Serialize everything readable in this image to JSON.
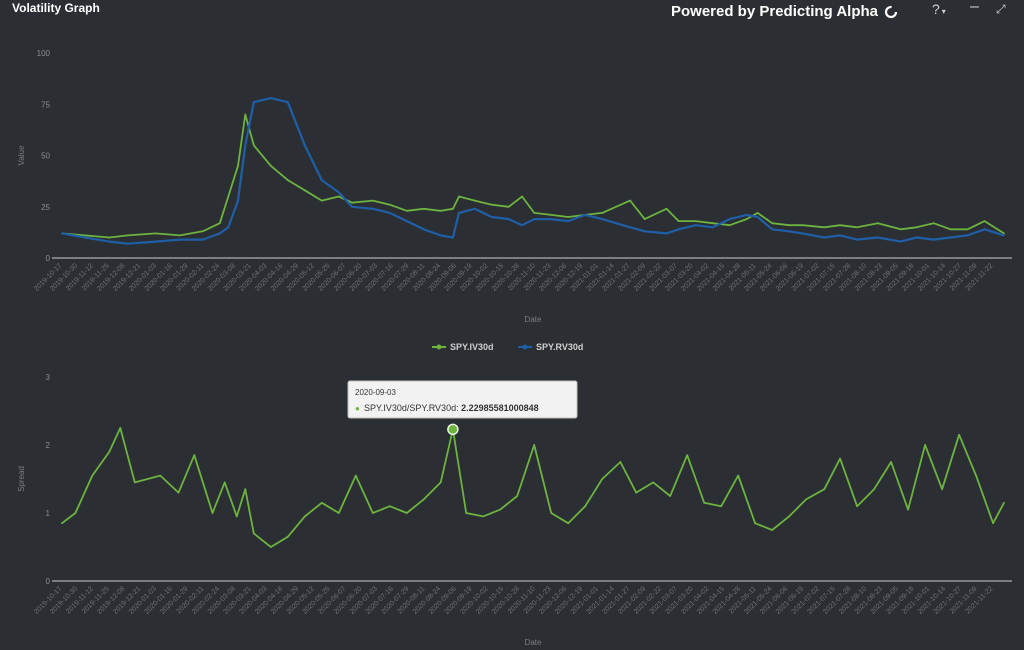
{
  "window": {
    "title": "Volatility Graph",
    "brand": "Powered by Predicting Alpha",
    "controls": {
      "help": "?",
      "minimize": "–",
      "expand": "⤢"
    },
    "icons": [
      "help-icon",
      "minimize-icon",
      "expand-icon",
      "predicting-alpha-logo-icon"
    ]
  },
  "colors": {
    "background": "#2b2e33",
    "iv_series": "#6db33f",
    "rv_series": "#1f5fa8",
    "ratio_series": "#6db33f",
    "axis_line": "#cfcfcf",
    "tooltip_bg": "#f2f2f2"
  },
  "chart_data": [
    {
      "type": "line",
      "xlabel": "Date",
      "ylabel": "Value",
      "ylim": [
        0,
        100
      ],
      "yticks": [
        0,
        25,
        50,
        75,
        100
      ],
      "x_range": [
        "2019-10-17",
        "2021-12-01"
      ],
      "grid": false,
      "legend_position": "bottom-center",
      "series": [
        {
          "name": "SPY.IV30d",
          "color": "#6db33f",
          "dates": [
            "2019-10-17",
            "2019-11-05",
            "2019-11-25",
            "2019-12-10",
            "2020-01-02",
            "2020-01-22",
            "2020-02-10",
            "2020-02-24",
            "2020-03-02",
            "2020-03-10",
            "2020-03-16",
            "2020-03-23",
            "2020-04-06",
            "2020-04-20",
            "2020-05-04",
            "2020-05-18",
            "2020-06-01",
            "2020-06-12",
            "2020-06-29",
            "2020-07-13",
            "2020-07-27",
            "2020-08-10",
            "2020-08-24",
            "2020-09-03",
            "2020-09-08",
            "2020-09-21",
            "2020-10-05",
            "2020-10-19",
            "2020-10-30",
            "2020-11-09",
            "2020-11-23",
            "2020-12-07",
            "2020-12-21",
            "2021-01-04",
            "2021-01-27",
            "2021-02-08",
            "2021-02-26",
            "2021-03-08",
            "2021-03-22",
            "2021-04-05",
            "2021-04-19",
            "2021-05-03",
            "2021-05-12",
            "2021-05-24",
            "2021-06-07",
            "2021-06-18",
            "2021-07-06",
            "2021-07-19",
            "2021-08-02",
            "2021-08-19",
            "2021-09-07",
            "2021-09-20",
            "2021-10-04",
            "2021-10-18",
            "2021-11-01",
            "2021-11-15",
            "2021-12-01"
          ],
          "values": [
            12,
            11,
            10,
            11,
            12,
            11,
            13,
            17,
            30,
            45,
            70,
            55,
            45,
            38,
            33,
            28,
            30,
            27,
            28,
            26,
            23,
            24,
            23,
            24,
            30,
            28,
            26,
            25,
            30,
            22,
            21,
            20,
            21,
            22,
            28,
            19,
            24,
            18,
            18,
            17,
            16,
            19,
            22,
            17,
            16,
            16,
            15,
            16,
            15,
            17,
            14,
            15,
            17,
            14,
            14,
            18,
            12
          ]
        },
        {
          "name": "SPY.RV30d",
          "color": "#1f5fa8",
          "dates": [
            "2019-10-17",
            "2019-11-05",
            "2019-11-25",
            "2019-12-10",
            "2020-01-02",
            "2020-01-22",
            "2020-02-10",
            "2020-02-24",
            "2020-03-02",
            "2020-03-10",
            "2020-03-16",
            "2020-03-23",
            "2020-04-06",
            "2020-04-20",
            "2020-05-04",
            "2020-05-18",
            "2020-06-01",
            "2020-06-12",
            "2020-06-29",
            "2020-07-13",
            "2020-07-27",
            "2020-08-10",
            "2020-08-24",
            "2020-09-03",
            "2020-09-08",
            "2020-09-21",
            "2020-10-05",
            "2020-10-19",
            "2020-10-30",
            "2020-11-09",
            "2020-11-23",
            "2020-12-07",
            "2020-12-21",
            "2021-01-04",
            "2021-01-27",
            "2021-02-08",
            "2021-02-26",
            "2021-03-08",
            "2021-03-22",
            "2021-04-05",
            "2021-04-19",
            "2021-05-03",
            "2021-05-12",
            "2021-05-24",
            "2021-06-07",
            "2021-06-18",
            "2021-07-06",
            "2021-07-19",
            "2021-08-02",
            "2021-08-19",
            "2021-09-07",
            "2021-09-20",
            "2021-10-04",
            "2021-10-18",
            "2021-11-01",
            "2021-11-15",
            "2021-12-01"
          ],
          "values": [
            12,
            10,
            8,
            7,
            8,
            9,
            9,
            12,
            15,
            28,
            55,
            76,
            78,
            76,
            55,
            38,
            32,
            25,
            24,
            22,
            18,
            14,
            11,
            10,
            22,
            24,
            20,
            19,
            16,
            19,
            19,
            18,
            21,
            19,
            15,
            13,
            12,
            14,
            16,
            15,
            19,
            21,
            20,
            14,
            13,
            12,
            10,
            11,
            9,
            10,
            8,
            10,
            9,
            10,
            11,
            14,
            11
          ]
        }
      ]
    },
    {
      "type": "line",
      "xlabel": "Date",
      "ylabel": "Spread",
      "ylim": [
        0,
        3
      ],
      "yticks": [
        0,
        1,
        2,
        3
      ],
      "x_range": [
        "2019-10-17",
        "2021-12-01"
      ],
      "grid": false,
      "series": [
        {
          "name": "SPY.IV30d/SPY.RV30d",
          "color": "#6db33f",
          "dates": [
            "2019-10-17",
            "2019-10-28",
            "2019-11-11",
            "2019-11-25",
            "2019-12-04",
            "2019-12-16",
            "2020-01-06",
            "2020-01-21",
            "2020-02-03",
            "2020-02-18",
            "2020-02-28",
            "2020-03-09",
            "2020-03-16",
            "2020-03-23",
            "2020-04-06",
            "2020-04-20",
            "2020-05-04",
            "2020-05-18",
            "2020-06-01",
            "2020-06-15",
            "2020-06-29",
            "2020-07-13",
            "2020-07-27",
            "2020-08-10",
            "2020-08-24",
            "2020-09-03",
            "2020-09-14",
            "2020-09-28",
            "2020-10-12",
            "2020-10-26",
            "2020-11-09",
            "2020-11-23",
            "2020-12-07",
            "2020-12-21",
            "2021-01-04",
            "2021-01-19",
            "2021-02-01",
            "2021-02-15",
            "2021-03-01",
            "2021-03-15",
            "2021-03-29",
            "2021-04-12",
            "2021-04-26",
            "2021-05-10",
            "2021-05-24",
            "2021-06-07",
            "2021-06-21",
            "2021-07-06",
            "2021-07-19",
            "2021-08-02",
            "2021-08-16",
            "2021-08-30",
            "2021-09-13",
            "2021-09-27",
            "2021-10-11",
            "2021-10-25",
            "2021-11-08",
            "2021-11-22",
            "2021-12-01"
          ],
          "values": [
            0.85,
            1.0,
            1.55,
            1.9,
            2.25,
            1.45,
            1.55,
            1.3,
            1.85,
            1.0,
            1.45,
            0.95,
            1.35,
            0.7,
            0.5,
            0.65,
            0.95,
            1.15,
            1.0,
            1.55,
            1.0,
            1.1,
            1.0,
            1.2,
            1.45,
            2.23,
            1.0,
            0.95,
            1.05,
            1.25,
            2.0,
            1.0,
            0.85,
            1.1,
            1.5,
            1.75,
            1.3,
            1.45,
            1.25,
            1.85,
            1.15,
            1.1,
            1.55,
            0.85,
            0.75,
            0.95,
            1.2,
            1.35,
            1.8,
            1.1,
            1.35,
            1.75,
            1.05,
            2.0,
            1.35,
            2.15,
            1.55,
            0.85,
            1.15
          ]
        }
      ],
      "tooltip": {
        "date": "2020-09-03",
        "label": "SPY.IV30d/SPY.RV30d:",
        "value": "2.22985581000848"
      }
    }
  ]
}
